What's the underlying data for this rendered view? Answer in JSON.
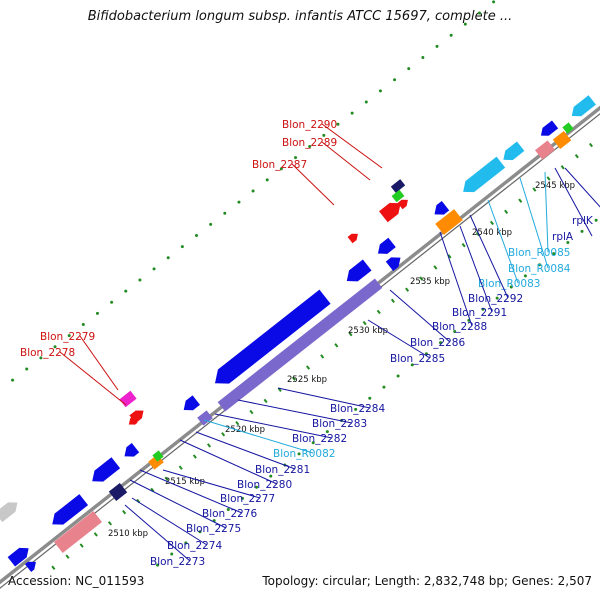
{
  "title": "Bifidobacterium longum subsp. infantis ATCC 15697, complete ...",
  "footer": {
    "accession": "Accession: NC_011593",
    "info": "Topology: circular; Length: 2,832,748 bp; Genes: 2,507"
  },
  "colors": {
    "backbone": "#8c8c8c",
    "gene_blue": "#0a0ae6",
    "gene_purple": "#7b68cc",
    "gene_red": "#ee1111",
    "gene_cyan": "#22bbee",
    "gene_orange": "#ff8c00",
    "gene_green": "#22cc22",
    "gene_pink": "#e8828c",
    "gene_magenta": "#ee22cc",
    "gene_navy": "#1a1a66",
    "gene_grey": "#c8c8c8",
    "label_blue": "#1515a0",
    "label_red": "#cc1111",
    "label_cyan": "#22aadd",
    "tick_green": "#228b22"
  },
  "ticks": [
    "2510 kbp",
    "2515 kbp",
    "2520 kbp",
    "2525 kbp",
    "2530 kbp",
    "2535 kbp",
    "2540 kbp",
    "2545 kbp"
  ],
  "labels": [
    {
      "text": "Blon_2290",
      "color": "label_red"
    },
    {
      "text": "Blon_2289",
      "color": "label_red"
    },
    {
      "text": "Blon_2287",
      "color": "label_red"
    },
    {
      "text": "Blon_2279",
      "color": "label_red"
    },
    {
      "text": "Blon_2278",
      "color": "label_red"
    },
    {
      "text": "rplK",
      "color": "label_blue"
    },
    {
      "text": "rplA",
      "color": "label_blue"
    },
    {
      "text": "Blon_R0085",
      "color": "label_cyan"
    },
    {
      "text": "Blon_R0084",
      "color": "label_cyan"
    },
    {
      "text": "Blon_R0083",
      "color": "label_cyan"
    },
    {
      "text": "Blon_2292",
      "color": "label_blue"
    },
    {
      "text": "Blon_2291",
      "color": "label_blue"
    },
    {
      "text": "Blon_2288",
      "color": "label_blue"
    },
    {
      "text": "Blon_2286",
      "color": "label_blue"
    },
    {
      "text": "Blon_2285",
      "color": "label_blue"
    },
    {
      "text": "Blon_2284",
      "color": "label_blue"
    },
    {
      "text": "Blon_2283",
      "color": "label_blue"
    },
    {
      "text": "Blon_2282",
      "color": "label_blue"
    },
    {
      "text": "Blon_R0082",
      "color": "label_cyan"
    },
    {
      "text": "Blon_2281",
      "color": "label_blue"
    },
    {
      "text": "Blon_2280",
      "color": "label_blue"
    },
    {
      "text": "Blon_2277",
      "color": "label_blue"
    },
    {
      "text": "Blon_2276",
      "color": "label_blue"
    },
    {
      "text": "Blon_2275",
      "color": "label_blue"
    },
    {
      "text": "Blon_2274",
      "color": "label_blue"
    },
    {
      "text": "Blon_2273",
      "color": "label_blue"
    }
  ]
}
